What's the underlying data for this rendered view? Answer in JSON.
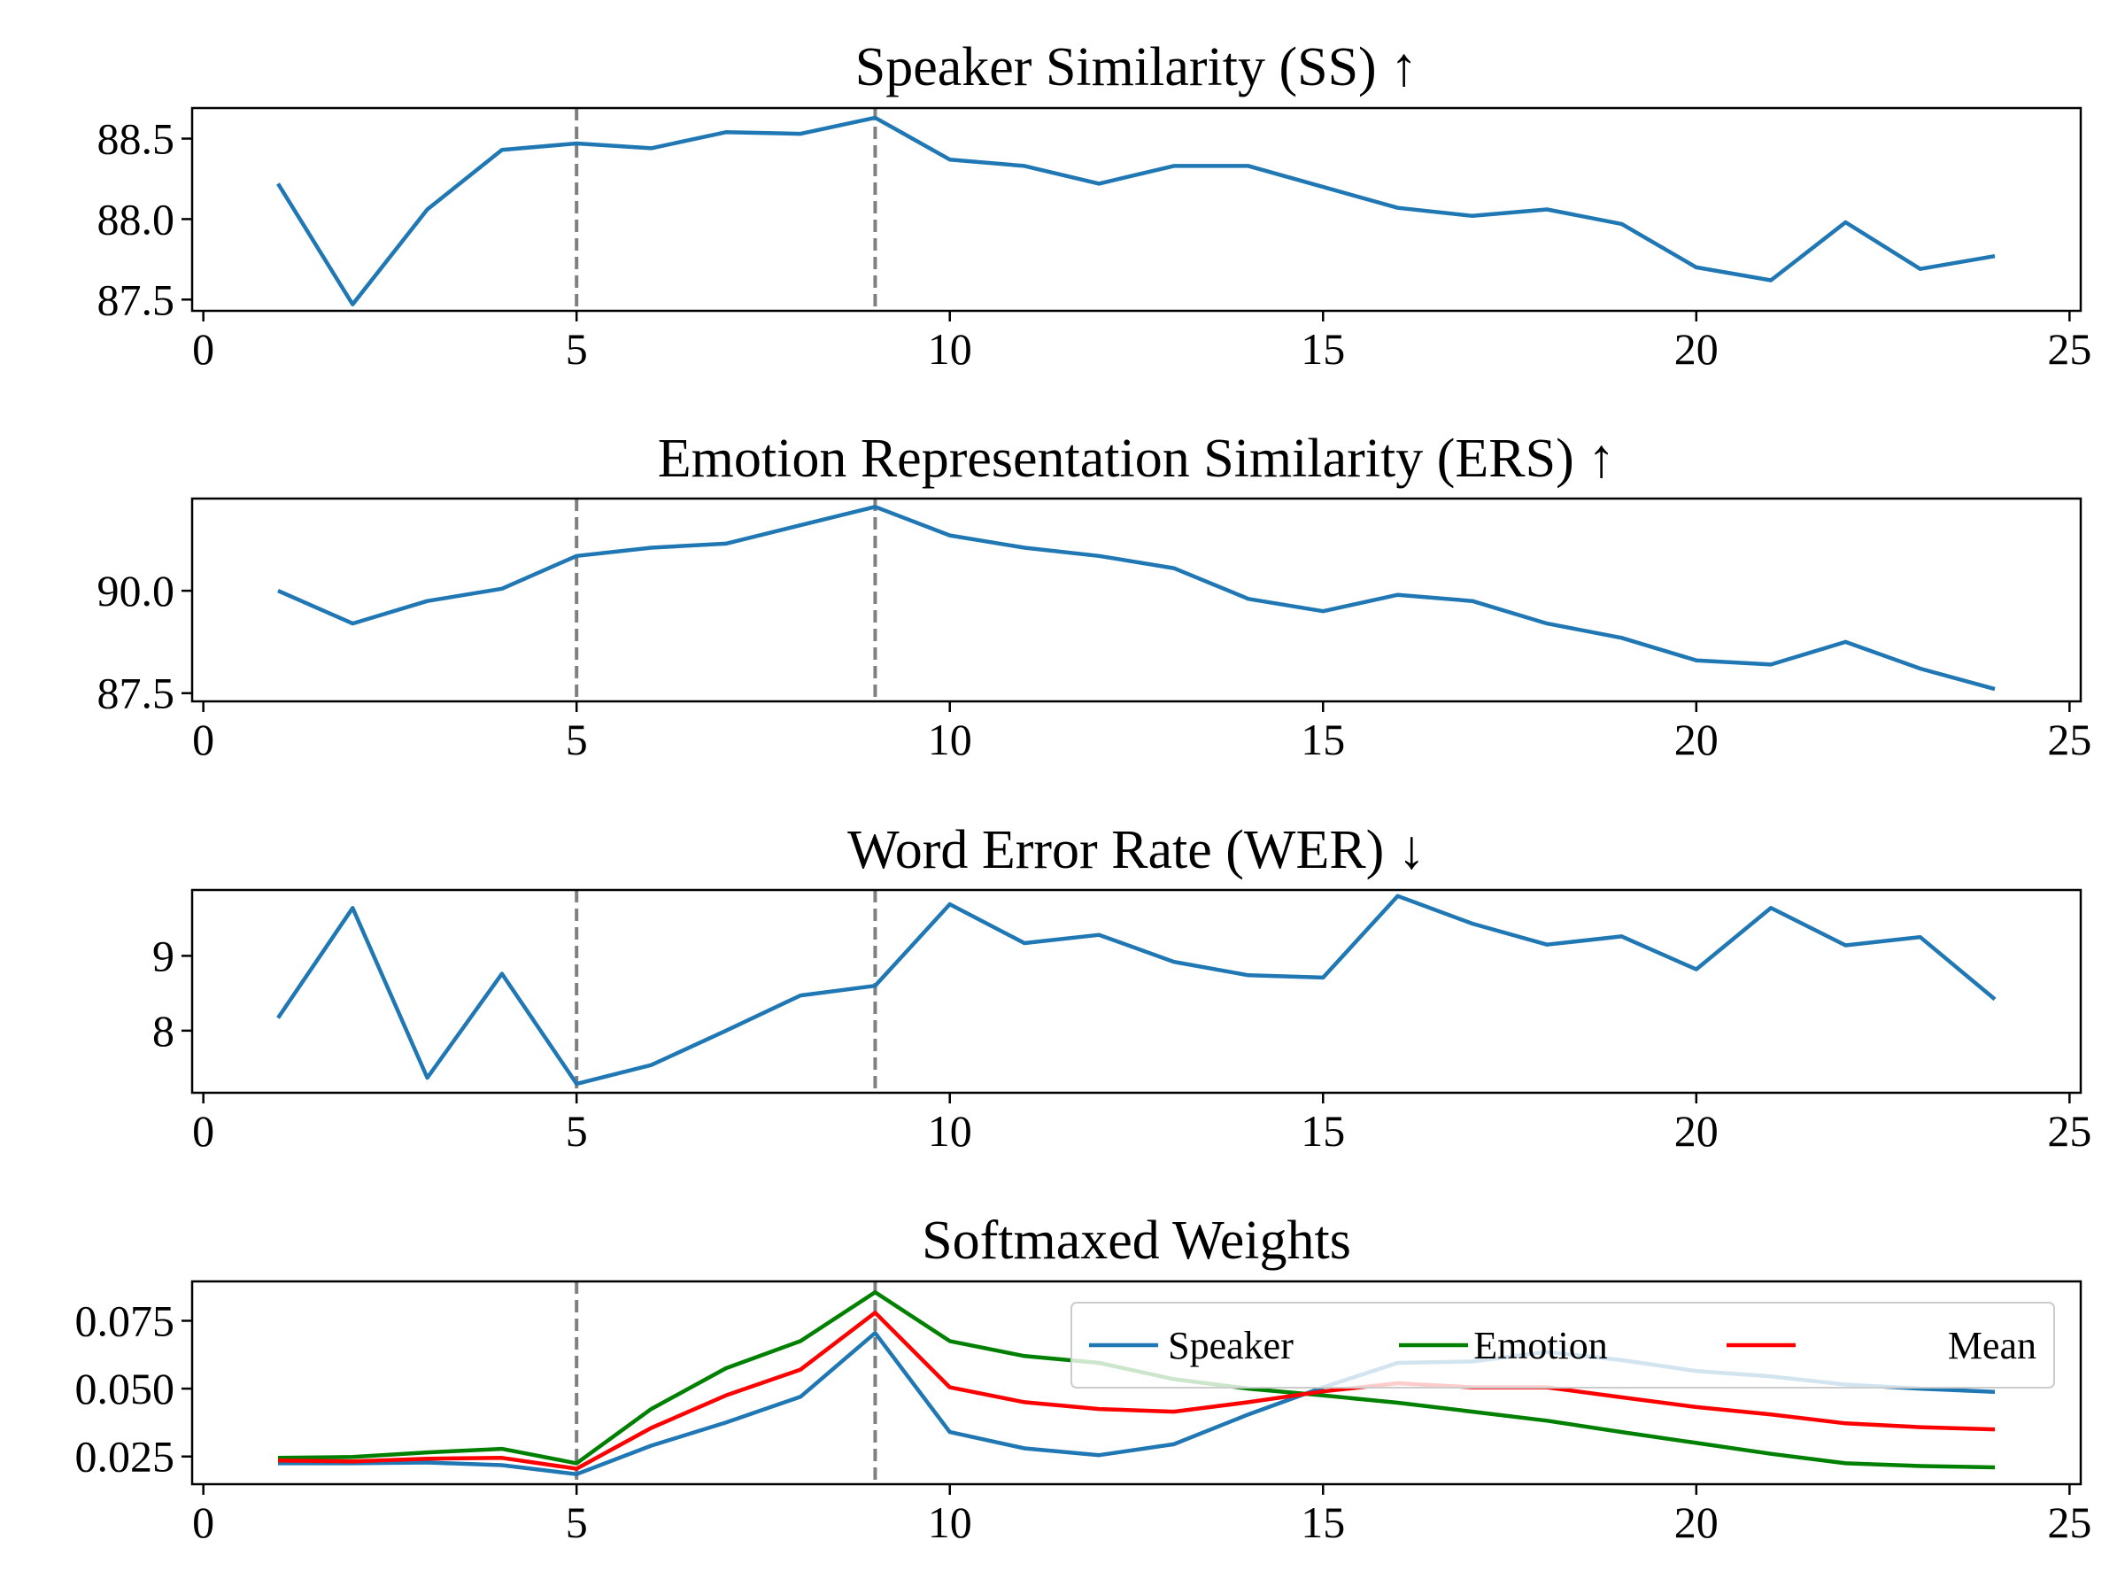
{
  "vlines": [
    5,
    9
  ],
  "vline_color": "#808080",
  "chart_data": [
    {
      "type": "line",
      "title": "Speaker Similarity (SS) ↑",
      "xlim": [
        -0.15,
        25.15
      ],
      "ylim": [
        87.43,
        88.69
      ],
      "xticks": [
        "0",
        "5",
        "10",
        "15",
        "20",
        "25"
      ],
      "yticks": [
        "87.5",
        "88.0",
        "88.5"
      ],
      "series": [
        {
          "name": "SS",
          "color": "#1f77b4",
          "x": [
            1,
            2,
            3,
            4,
            5,
            6,
            7,
            8,
            9,
            10,
            11,
            12,
            13,
            14,
            15,
            16,
            17,
            18,
            19,
            20,
            21,
            22,
            23,
            24
          ],
          "values": [
            88.22,
            87.47,
            88.06,
            88.43,
            88.47,
            88.44,
            88.54,
            88.53,
            88.63,
            88.37,
            88.33,
            88.22,
            88.33,
            88.33,
            88.2,
            88.07,
            88.02,
            88.06,
            87.97,
            87.7,
            87.62,
            87.98,
            87.69,
            87.77
          ]
        }
      ]
    },
    {
      "type": "line",
      "title": "Emotion Representation Similarity (ERS) ↑",
      "xlim": [
        -0.15,
        25.15
      ],
      "ylim": [
        87.3,
        92.25
      ],
      "xticks": [
        "0",
        "5",
        "10",
        "15",
        "20",
        "25"
      ],
      "yticks": [
        "87.5",
        "90.0"
      ],
      "series": [
        {
          "name": "ERS",
          "color": "#1f77b4",
          "x": [
            1,
            2,
            3,
            4,
            5,
            6,
            7,
            8,
            9,
            10,
            11,
            12,
            13,
            14,
            15,
            16,
            17,
            18,
            19,
            20,
            21,
            22,
            23,
            24
          ],
          "values": [
            90.0,
            89.2,
            89.75,
            90.05,
            90.85,
            91.05,
            91.15,
            91.6,
            92.05,
            91.35,
            91.05,
            90.85,
            90.55,
            89.8,
            89.5,
            89.9,
            89.75,
            89.2,
            88.85,
            88.3,
            88.2,
            88.75,
            88.1,
            87.6
          ]
        }
      ]
    },
    {
      "type": "line",
      "title": "Word Error Rate (WER) ↓",
      "xlim": [
        -0.15,
        25.15
      ],
      "ylim": [
        7.17,
        9.88
      ],
      "xticks": [
        "0",
        "5",
        "10",
        "15",
        "20",
        "25"
      ],
      "yticks": [
        "8",
        "9"
      ],
      "series": [
        {
          "name": "WER",
          "color": "#1f77b4",
          "x": [
            1,
            2,
            3,
            4,
            5,
            6,
            7,
            8,
            9,
            10,
            11,
            12,
            13,
            14,
            15,
            16,
            17,
            18,
            19,
            20,
            21,
            22,
            23,
            24
          ],
          "values": [
            8.17,
            9.64,
            7.37,
            8.76,
            7.29,
            7.54,
            8.0,
            8.47,
            8.6,
            9.69,
            9.17,
            9.28,
            8.92,
            8.74,
            8.71,
            9.8,
            9.43,
            9.15,
            9.26,
            8.82,
            9.64,
            9.14,
            9.25,
            8.42
          ]
        }
      ]
    },
    {
      "type": "line",
      "title": "Softmaxed Weights",
      "xlim": [
        -0.15,
        25.15
      ],
      "ylim": [
        0.0148,
        0.0895
      ],
      "xticks": [
        "0",
        "5",
        "10",
        "15",
        "20",
        "25"
      ],
      "yticks": [
        "0.025",
        "0.050",
        "0.075"
      ],
      "legend": {
        "placement": "upper-right",
        "columns": 3
      },
      "series": [
        {
          "name": "Speaker",
          "color": "#1f77b4",
          "x": [
            1,
            2,
            3,
            4,
            5,
            6,
            7,
            8,
            9,
            10,
            11,
            12,
            13,
            14,
            15,
            16,
            17,
            18,
            19,
            20,
            21,
            22,
            23,
            24
          ],
          "values": [
            0.0225,
            0.0225,
            0.0228,
            0.0218,
            0.0185,
            0.029,
            0.0375,
            0.047,
            0.0705,
            0.034,
            0.028,
            0.0255,
            0.0295,
            0.0405,
            0.0505,
            0.0595,
            0.06,
            0.0635,
            0.0605,
            0.0565,
            0.0545,
            0.0515,
            0.05,
            0.0488
          ]
        },
        {
          "name": "Emotion",
          "color": "#008000",
          "x": [
            1,
            2,
            3,
            4,
            5,
            6,
            7,
            8,
            9,
            10,
            11,
            12,
            13,
            14,
            15,
            16,
            17,
            18,
            19,
            20,
            21,
            22,
            23,
            24
          ],
          "values": [
            0.0245,
            0.0248,
            0.0265,
            0.0278,
            0.0225,
            0.0425,
            0.0575,
            0.0675,
            0.0855,
            0.0675,
            0.062,
            0.0595,
            0.0535,
            0.05,
            0.0475,
            0.0448,
            0.0415,
            0.0382,
            0.034,
            0.03,
            0.026,
            0.0225,
            0.0215,
            0.021
          ]
        },
        {
          "name": "Mean",
          "color": "#ff0000",
          "x": [
            1,
            2,
            3,
            4,
            5,
            6,
            7,
            8,
            9,
            10,
            11,
            12,
            13,
            14,
            15,
            16,
            17,
            18,
            19,
            20,
            21,
            22,
            23,
            24
          ],
          "values": [
            0.0235,
            0.0232,
            0.0242,
            0.0245,
            0.0205,
            0.0355,
            0.0475,
            0.057,
            0.078,
            0.0505,
            0.045,
            0.0425,
            0.0415,
            0.045,
            0.049,
            0.052,
            0.0505,
            0.0505,
            0.0468,
            0.0432,
            0.0405,
            0.0372,
            0.0358,
            0.035
          ]
        }
      ]
    }
  ]
}
